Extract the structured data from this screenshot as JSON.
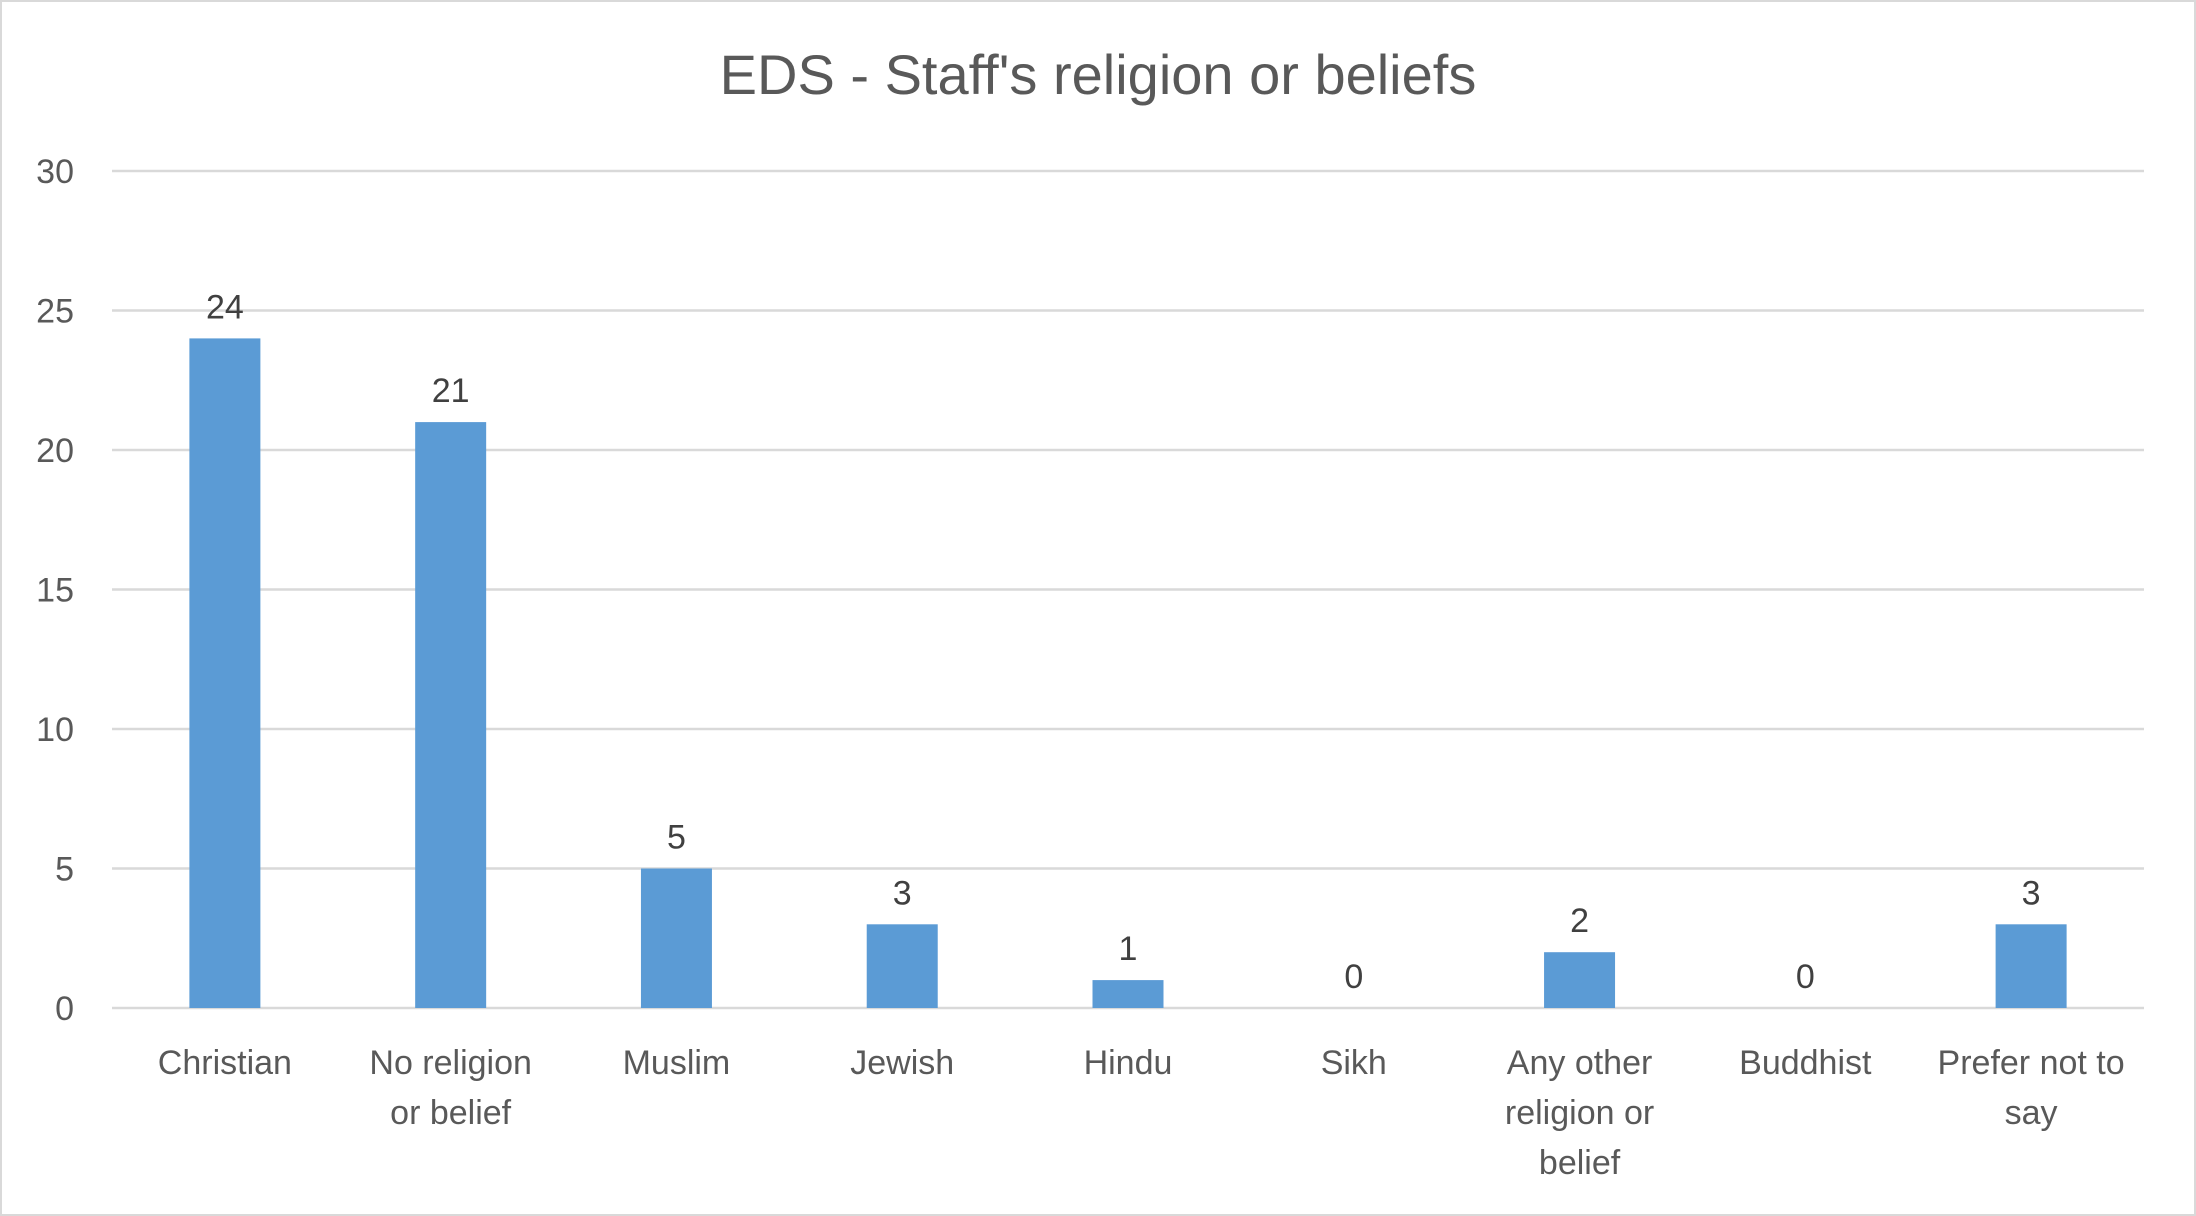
{
  "chart_data": {
    "type": "bar",
    "title": "EDS - Staff's religion or beliefs",
    "xlabel": "",
    "ylabel": "",
    "categories": [
      [
        "Christian"
      ],
      [
        "No religion",
        "or belief"
      ],
      [
        "Muslim"
      ],
      [
        "Jewish"
      ],
      [
        "Hindu"
      ],
      [
        "Sikh"
      ],
      [
        "Any other",
        "religion or",
        "belief"
      ],
      [
        "Buddhist"
      ],
      [
        "Prefer not to",
        "say"
      ]
    ],
    "values": [
      24,
      21,
      5,
      3,
      1,
      0,
      2,
      0,
      3
    ],
    "ylim": [
      0,
      30
    ],
    "yticks": [
      "0",
      "5",
      "10",
      "15",
      "20",
      "25",
      "30"
    ],
    "grid": true,
    "legend": "none",
    "colors": {
      "bar": "#5b9bd5",
      "grid": "#d9d9d9",
      "text": "#595959"
    }
  }
}
